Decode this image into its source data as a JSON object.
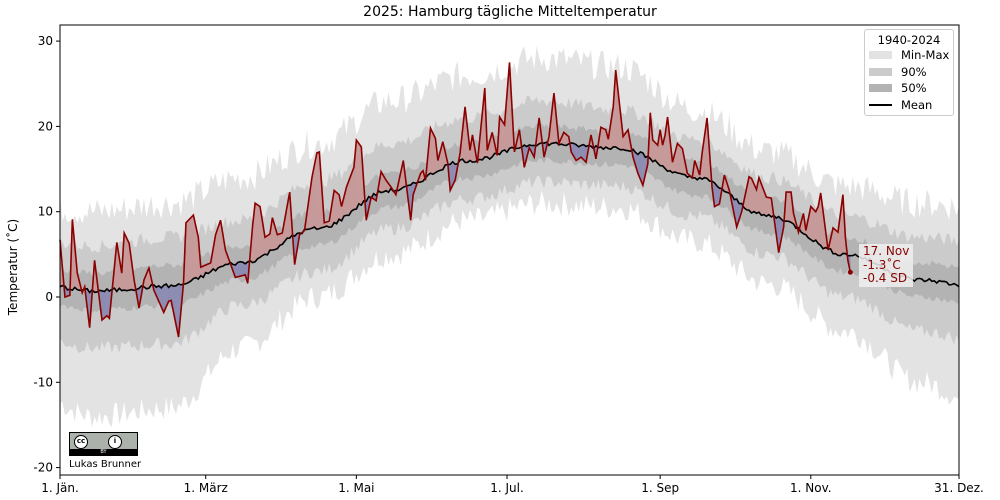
{
  "chart_data": {
    "type": "line",
    "title": "2025: Hamburg tägliche Mitteltemperatur",
    "ylabel": "Temperatur (˚C)",
    "xlabel": "",
    "ylim": [
      -21,
      32
    ],
    "xlim": [
      "2025-01-01",
      "2025-12-31"
    ],
    "grid": false,
    "y_ticks": [
      -20,
      -10,
      0,
      10,
      20,
      30
    ],
    "x_ticks": [
      {
        "date": "01-01",
        "label": "1. Jän."
      },
      {
        "date": "03-01",
        "label": "1. März"
      },
      {
        "date": "05-01",
        "label": "1. Mai"
      },
      {
        "date": "07-01",
        "label": "1. Jul."
      },
      {
        "date": "09-01",
        "label": "1. Sep"
      },
      {
        "date": "11-01",
        "label": "1. Nov."
      },
      {
        "date": "12-31",
        "label": "31. Dez."
      }
    ],
    "legend": {
      "title": "1940-2024",
      "placement": "top-right",
      "entries": [
        "Min-Max",
        "90%",
        "50%",
        "Mean"
      ]
    },
    "colors": {
      "minmax": "#e3e3e3",
      "p90": "#cbcbcb",
      "p50": "#b3b3b3",
      "mean": "#000000",
      "obs_line": "#8b0000",
      "above_fill": "#c79a9a",
      "below_fill": "#8d8db3"
    },
    "climatology_monthly": {
      "month": [
        "01",
        "02",
        "03",
        "04",
        "05",
        "06",
        "07",
        "08",
        "09",
        "10",
        "11",
        "12"
      ],
      "mean": [
        0.7,
        1.3,
        4,
        8,
        12.5,
        16,
        18,
        17.5,
        14,
        9.5,
        5,
        2
      ],
      "p25": [
        -1.5,
        -1,
        2,
        6,
        10.5,
        14,
        16,
        15.5,
        12,
        7.5,
        3,
        0
      ],
      "p75": [
        2.8,
        3.7,
        6,
        10,
        14.5,
        18,
        20,
        19.5,
        16,
        11.5,
        7,
        4
      ],
      "p5": [
        -6,
        -5.5,
        -1,
        3,
        8,
        11.5,
        13.5,
        13,
        9.5,
        5,
        0,
        -4
      ],
      "p95": [
        6,
        7,
        9,
        13.5,
        18,
        21,
        23,
        22,
        18.5,
        14,
        9.5,
        7
      ],
      "min": [
        -14,
        -13,
        -6,
        0,
        5,
        9,
        11,
        10.5,
        6.5,
        1.5,
        -4,
        -10
      ],
      "max": [
        10,
        11,
        14,
        18,
        23,
        26,
        28,
        27,
        22,
        17,
        13,
        11
      ]
    },
    "series_2025": {
      "x": [
        "01-01",
        "01-03",
        "01-05",
        "01-06",
        "01-08",
        "01-10",
        "01-11",
        "01-13",
        "01-15",
        "01-18",
        "01-20",
        "01-21",
        "01-24",
        "01-26",
        "01-27",
        "01-29",
        "01-31",
        "02-02",
        "02-04",
        "02-06",
        "02-08",
        "02-12",
        "02-14",
        "02-15",
        "02-18",
        "02-20",
        "02-21",
        "02-24",
        "02-26",
        "02-27",
        "03-03",
        "03-05",
        "03-07",
        "03-09",
        "03-13",
        "03-17",
        "03-18",
        "03-20",
        "03-21",
        "03-23",
        "03-25",
        "03-27",
        "03-28",
        "03-30",
        "04-01",
        "04-04",
        "04-06",
        "04-08",
        "04-10",
        "04-13",
        "04-15",
        "04-16",
        "04-18",
        "04-20",
        "04-22",
        "04-24",
        "04-25",
        "04-27",
        "04-30",
        "05-01",
        "05-03",
        "05-05",
        "05-07",
        "05-09",
        "05-11",
        "05-13",
        "05-15",
        "05-17",
        "05-20",
        "05-23",
        "05-24",
        "05-27",
        "05-28",
        "05-29",
        "05-31",
        "06-02",
        "06-03",
        "06-05",
        "06-07",
        "06-08",
        "06-10",
        "06-12",
        "06-14",
        "06-16",
        "06-17",
        "06-19",
        "06-22",
        "06-23",
        "06-25",
        "06-27",
        "06-28",
        "06-30",
        "07-02",
        "07-04",
        "07-06",
        "07-08",
        "07-10",
        "07-12",
        "07-14",
        "07-16",
        "07-18",
        "07-20",
        "07-22",
        "07-24",
        "07-26",
        "07-27",
        "07-29",
        "07-31",
        "08-02",
        "08-04",
        "08-06",
        "08-08",
        "08-10",
        "08-11",
        "08-13",
        "08-14",
        "08-17",
        "08-19",
        "08-21",
        "08-23",
        "08-25",
        "08-27",
        "08-28",
        "08-29",
        "08-31",
        "09-01",
        "09-02",
        "09-03",
        "09-04",
        "09-06",
        "09-08",
        "09-10",
        "09-12",
        "09-14",
        "09-15",
        "09-17",
        "09-18",
        "09-20",
        "09-22",
        "09-23",
        "09-25",
        "09-27",
        "09-29",
        "10-02",
        "10-04",
        "10-07",
        "10-08",
        "10-10",
        "10-11",
        "10-14",
        "10-16",
        "10-19",
        "10-21",
        "10-22",
        "10-24",
        "10-25",
        "10-27",
        "10-29",
        "10-30",
        "11-01",
        "11-03",
        "11-04",
        "11-05",
        "11-08",
        "11-10",
        "11-12",
        "11-14",
        "11-15",
        "11-16",
        "11-17"
      ],
      "y": [
        6.7,
        0,
        0.2,
        9.1,
        2.8,
        0.5,
        1.2,
        -3.6,
        4.3,
        -2.7,
        -2.2,
        -2.5,
        6.4,
        2.8,
        7.5,
        6.3,
        2.0,
        -1.3,
        2.0,
        3.4,
        0.8,
        -1.8,
        -0.5,
        -0.4,
        -4.7,
        1.6,
        8.7,
        9.6,
        7.0,
        3.5,
        4.0,
        7.3,
        9.0,
        5.5,
        2.3,
        2.6,
        1.6,
        8.4,
        11,
        10.6,
        7,
        7.4,
        9.3,
        7.3,
        7.5,
        12.3,
        3.8,
        7.3,
        7.8,
        14,
        16.9,
        17,
        8.7,
        8.9,
        12.5,
        12,
        10.6,
        12.9,
        15.2,
        18.4,
        17.6,
        9,
        11.7,
        11.3,
        14.7,
        13.7,
        12.9,
        12,
        16,
        9,
        12,
        14.5,
        14.8,
        13.7,
        19.8,
        18.6,
        16,
        18.2,
        15.7,
        12.5,
        13.7,
        16.9,
        22.3,
        17.2,
        19,
        15.7,
        24.5,
        17.2,
        19.3,
        16.6,
        21.1,
        20.2,
        27.5,
        17,
        19.6,
        15.2,
        17.5,
        16.4,
        21,
        16.4,
        18.8,
        23.9,
        18,
        19.3,
        18.8,
        17,
        16,
        16.4,
        15.8,
        19,
        16.2,
        19.9,
        19.6,
        18.5,
        22.3,
        26.6,
        18.8,
        19.6,
        16.4,
        14.5,
        13.1,
        15.6,
        21.6,
        18.4,
        17.8,
        19.6,
        17.8,
        19,
        21.1,
        15.8,
        18,
        17.4,
        14.5,
        14,
        16,
        14.3,
        16.9,
        21,
        12.9,
        10.6,
        10.9,
        14.3,
        12.5,
        8.2,
        10,
        14.1,
        13.9,
        12.6,
        14,
        11.7,
        11.6,
        5.2,
        8.2,
        12.3,
        12.3,
        9.8,
        7.6,
        9.8,
        7.8,
        10.6,
        10,
        10.6,
        12.2,
        5.5,
        8.1,
        7.6,
        12,
        7,
        4.3,
        2.9
      ]
    },
    "annotation": {
      "date": "17. Nov",
      "value": "-1.3˚C",
      "sd": "-0.4 SD"
    }
  },
  "credit": {
    "license": "CC BY",
    "author": "Lukas Brunner"
  }
}
